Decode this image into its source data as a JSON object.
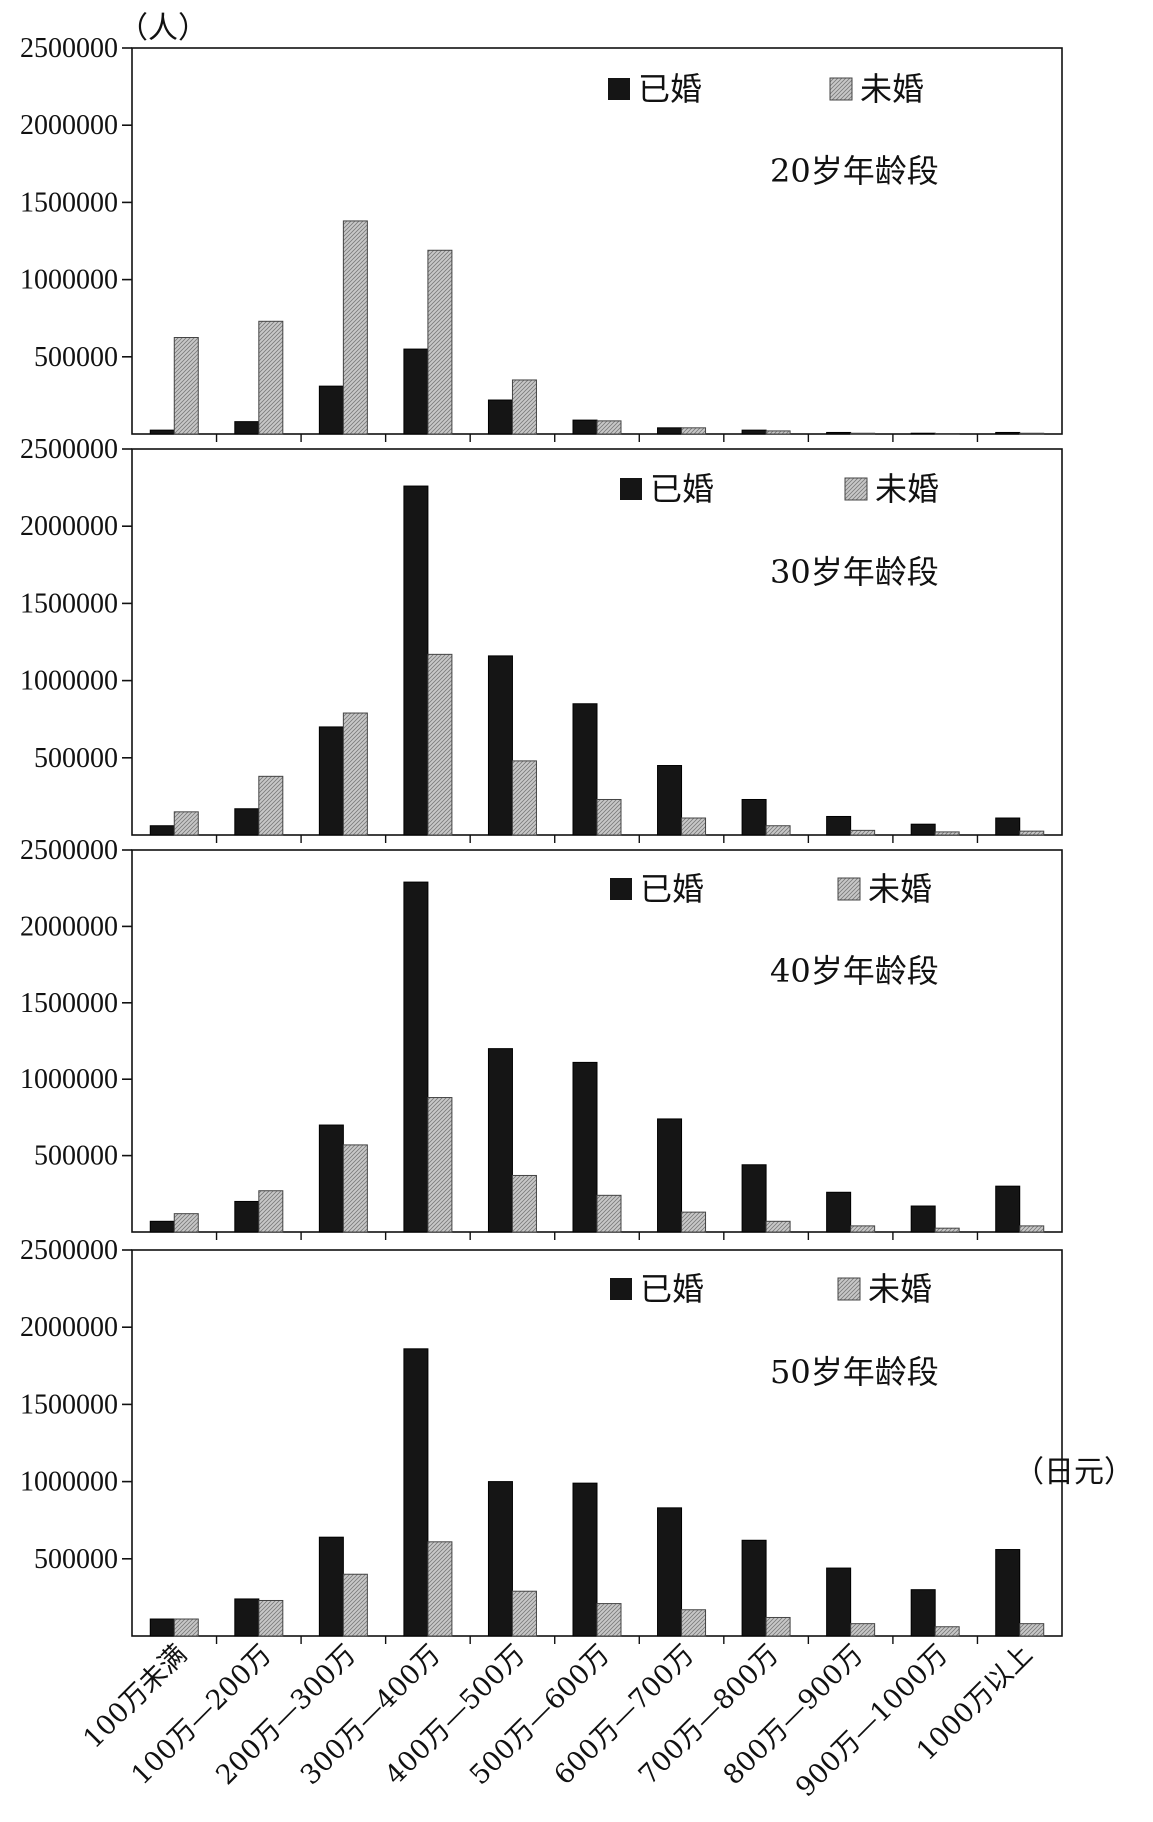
{
  "chart_data": {
    "type": "bar",
    "y_unit": "（人）",
    "x_unit": "（日元）",
    "ylim": [
      0,
      2500000
    ],
    "y_ticks": [
      "500000",
      "1000000",
      "1500000",
      "2000000",
      "2500000"
    ],
    "categories": [
      "100万未满",
      "100万—200万",
      "200万—300万",
      "300万—400万",
      "400万—500万",
      "500万—600万",
      "600万—700万",
      "700万—800万",
      "800万—900万",
      "900万—1000万",
      "1000万以上"
    ],
    "legend": [
      "已婚",
      "未婚"
    ],
    "colors": {
      "married": "#151515",
      "unmarried": "#bdbdbd"
    },
    "panels": [
      {
        "label": "20岁年龄段",
        "series": [
          {
            "name": "已婚",
            "values": [
              25000,
              80000,
              310000,
              550000,
              220000,
              90000,
              40000,
              25000,
              10000,
              5000,
              10000
            ]
          },
          {
            "name": "未婚",
            "values": [
              625000,
              730000,
              1380000,
              1190000,
              350000,
              85000,
              40000,
              20000,
              5000,
              3000,
              5000
            ]
          }
        ]
      },
      {
        "label": "30岁年龄段",
        "series": [
          {
            "name": "已婚",
            "values": [
              60000,
              170000,
              700000,
              2260000,
              1160000,
              850000,
              450000,
              230000,
              120000,
              70000,
              110000
            ]
          },
          {
            "name": "未婚",
            "values": [
              150000,
              380000,
              790000,
              1170000,
              480000,
              230000,
              110000,
              60000,
              30000,
              20000,
              25000
            ]
          }
        ]
      },
      {
        "label": "40岁年龄段",
        "series": [
          {
            "name": "已婚",
            "values": [
              70000,
              200000,
              700000,
              2290000,
              1200000,
              1110000,
              740000,
              440000,
              260000,
              170000,
              300000
            ]
          },
          {
            "name": "未婚",
            "values": [
              120000,
              270000,
              570000,
              880000,
              370000,
              240000,
              130000,
              70000,
              40000,
              25000,
              40000
            ]
          }
        ]
      },
      {
        "label": "50岁年龄段",
        "series": [
          {
            "name": "已婚",
            "values": [
              110000,
              240000,
              640000,
              1860000,
              1000000,
              990000,
              830000,
              620000,
              440000,
              300000,
              560000
            ]
          },
          {
            "name": "未婚",
            "values": [
              110000,
              230000,
              400000,
              610000,
              290000,
              210000,
              170000,
              120000,
              80000,
              60000,
              80000
            ]
          }
        ]
      }
    ]
  }
}
